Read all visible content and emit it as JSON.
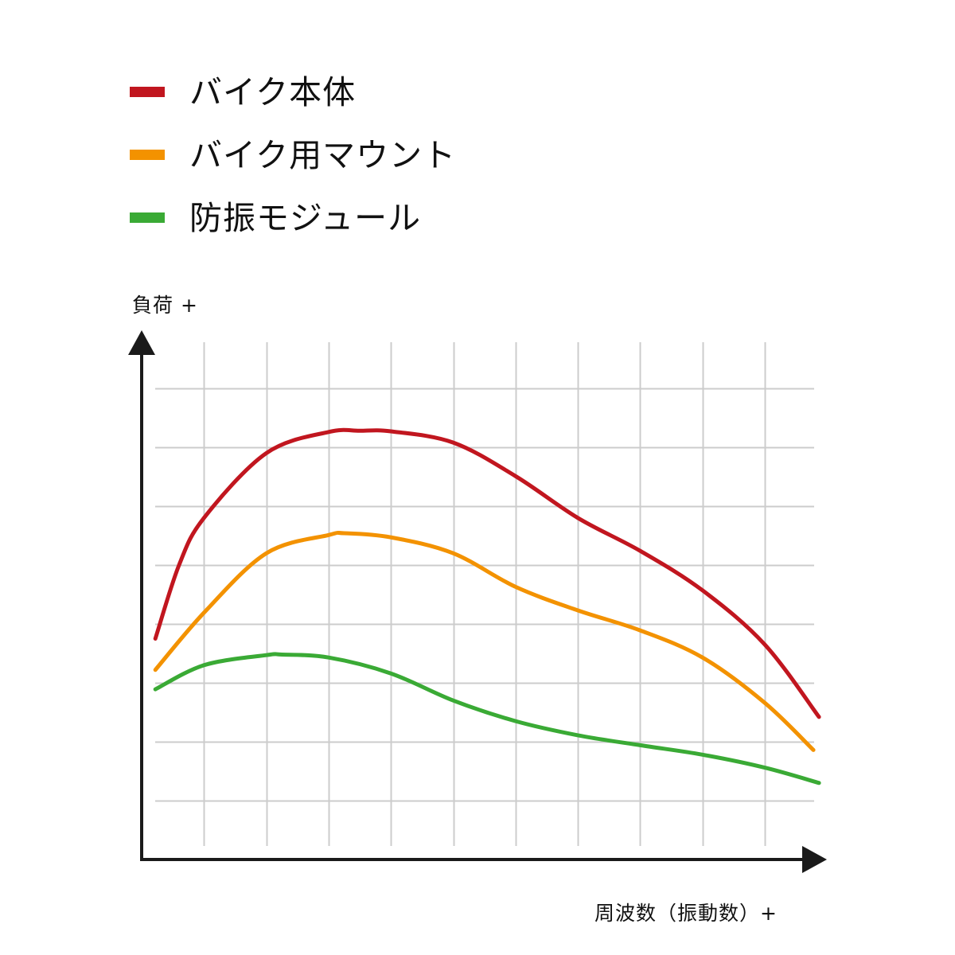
{
  "legend": {
    "items": [
      {
        "label": "バイク本体",
        "color": "#c1161f"
      },
      {
        "label": "バイク用マウント",
        "color": "#f39200"
      },
      {
        "label": "防振モジュール",
        "color": "#3aaa35"
      }
    ]
  },
  "axes": {
    "ylabel": "負荷  +",
    "xlabel": "周波数（振動数）+",
    "axis_color": "#1a1a1a",
    "grid_color": "#cccccc"
  },
  "chart_data": {
    "type": "line",
    "title": "",
    "xlabel": "周波数（振動数）+",
    "ylabel": "負荷 +",
    "xlim": [
      0,
      11
    ],
    "ylim": [
      0,
      9
    ],
    "grid": true,
    "legend_position": "top-left",
    "x_ticks_shown": false,
    "y_ticks_shown": false,
    "series": [
      {
        "name": "バイク本体",
        "color": "#c1161f",
        "x": [
          0.22,
          0.6,
          1.0,
          2.0,
          3.0,
          3.5,
          4.0,
          5.0,
          6.0,
          7.0,
          8.0,
          9.0,
          10.0,
          10.87
        ],
        "y": [
          3.75,
          5.0,
          5.8,
          6.9,
          7.26,
          7.28,
          7.27,
          7.08,
          6.51,
          5.8,
          5.24,
          4.57,
          3.65,
          2.42
        ]
      },
      {
        "name": "バイク用マウント",
        "color": "#f39200",
        "x": [
          0.22,
          1.0,
          2.0,
          3.0,
          3.25,
          4.0,
          5.0,
          6.0,
          7.0,
          8.0,
          9.0,
          10.0,
          10.78
        ],
        "y": [
          3.22,
          4.19,
          5.2,
          5.51,
          5.54,
          5.47,
          5.2,
          4.63,
          4.23,
          3.89,
          3.43,
          2.66,
          1.86
        ]
      },
      {
        "name": "防振モジュール",
        "color": "#3aaa35",
        "x": [
          0.22,
          1.0,
          2.0,
          2.25,
          3.0,
          4.0,
          5.0,
          6.0,
          7.0,
          8.0,
          9.0,
          10.0,
          10.87
        ],
        "y": [
          2.89,
          3.3,
          3.47,
          3.48,
          3.43,
          3.16,
          2.7,
          2.35,
          2.11,
          1.94,
          1.78,
          1.56,
          1.3
        ]
      }
    ]
  }
}
